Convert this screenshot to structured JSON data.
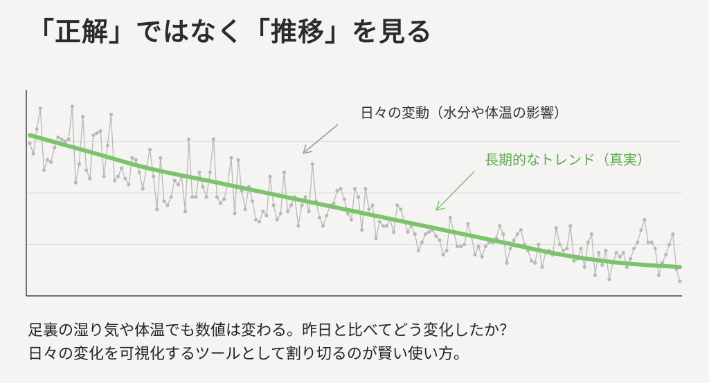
{
  "title": "「正解」ではなく「推移」を見る",
  "caption": {
    "line1": "足裏の湿り気や体温でも数値は変わる。昨日と比べてどう変化したか？",
    "line2": "日々の変化を可視化するツールとして割り切るのが賢い使い方。"
  },
  "colors": {
    "background": "#f5f4f2",
    "daily_series": "#b8b8b8",
    "trend_series": "#7dc36d",
    "gridline": "#dcdcdc",
    "axis": "#444444",
    "daily_annotation_text": "#333333",
    "trend_annotation_text": "#5cab4c"
  },
  "chart_data": {
    "type": "line",
    "title": "",
    "xlabel": "",
    "ylabel": "",
    "grid": true,
    "ylim": [
      0,
      100
    ],
    "gridlines_y": [
      25,
      50,
      75
    ],
    "annotations": [
      {
        "text": "日々の変動（水分や体温の影響）",
        "target": "daily"
      },
      {
        "text": "長期的なトレンド（真実）",
        "target": "trend"
      }
    ],
    "series": [
      {
        "id": "daily",
        "values": [
          74,
          69,
          81,
          91,
          61,
          66,
          65,
          72,
          77,
          76,
          75,
          76,
          92,
          55,
          64,
          87,
          61,
          57,
          78,
          79,
          80,
          58,
          73,
          88,
          56,
          58,
          62,
          57,
          54,
          67,
          66,
          60,
          52,
          62,
          71,
          58,
          42,
          67,
          46,
          44,
          48,
          56,
          54,
          58,
          41,
          76,
          48,
          48,
          60,
          53,
          48,
          60,
          76,
          48,
          45,
          47,
          54,
          67,
          40,
          66,
          51,
          42,
          53,
          46,
          37,
          36,
          41,
          39,
          58,
          44,
          37,
          40,
          60,
          41,
          44,
          48,
          34,
          44,
          48,
          41,
          64,
          46,
          38,
          34,
          39,
          44,
          45,
          51,
          52,
          47,
          40,
          37,
          52,
          48,
          32,
          52,
          42,
          44,
          28,
          36,
          34,
          34,
          37,
          31,
          44,
          42,
          36,
          31,
          34,
          30,
          22,
          26,
          30,
          31,
          32,
          29,
          27,
          20,
          22,
          38,
          31,
          24,
          24,
          25,
          35,
          29,
          20,
          24,
          19,
          24,
          26,
          26,
          28,
          34,
          30,
          16,
          23,
          27,
          30,
          32,
          25,
          22,
          17,
          16,
          25,
          14,
          21,
          22,
          20,
          33,
          25,
          22,
          23,
          34,
          17,
          18,
          23,
          14,
          26,
          30,
          10,
          21,
          15,
          22,
          8,
          16,
          21,
          19,
          21,
          14,
          18,
          23,
          26,
          32,
          37,
          26,
          26,
          23,
          10,
          16,
          20,
          25,
          30,
          13,
          7
        ]
      },
      {
        "id": "trend",
        "values": [
          78,
          70,
          62,
          56,
          50,
          44,
          38,
          32,
          26,
          20,
          16,
          14
        ]
      }
    ]
  }
}
